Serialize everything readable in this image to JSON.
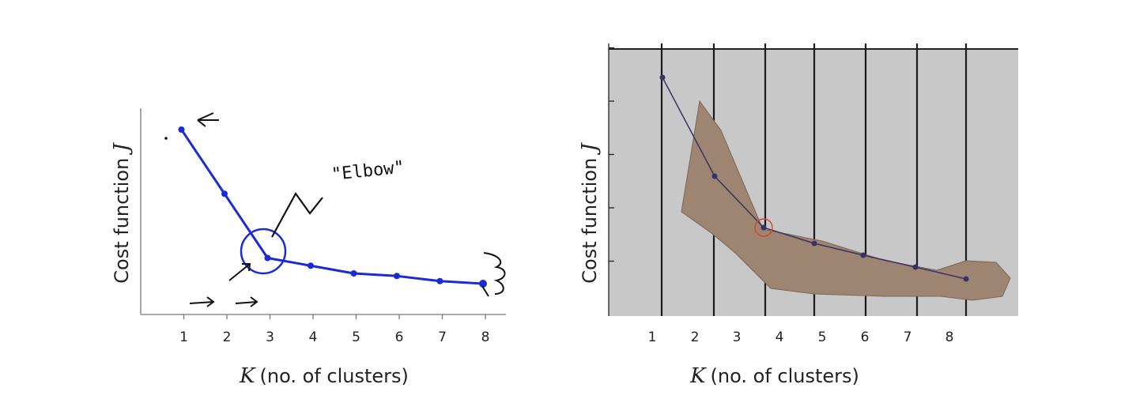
{
  "chart_data": [
    {
      "type": "line",
      "xlabel_symbol": "K",
      "xlabel": "(no. of clusters)",
      "ylabel": "Cost function",
      "ylabel_symbol": "J",
      "x": [
        1,
        2,
        3,
        4,
        5,
        6,
        7,
        8
      ],
      "series": [
        {
          "values": [
            7.2,
            4.7,
            2.2,
            1.9,
            1.6,
            1.5,
            1.3,
            1.2
          ]
        }
      ],
      "xlim": [
        0,
        8.5
      ],
      "ylim": [
        0,
        8
      ],
      "grid": false,
      "color": "#1a2bd6",
      "annotations": [
        {
          "text": "\"Elbow\"",
          "x": 3,
          "y": 2.2
        },
        {
          "text": "↝",
          "x": 1,
          "y": 7.2
        }
      ]
    },
    {
      "type": "line",
      "xlabel_symbol": "K",
      "xlabel": "(no. of clusters)",
      "ylabel": "Cost function",
      "ylabel_symbol": "J",
      "x": [
        1,
        2,
        3,
        4,
        5,
        6,
        7,
        8
      ],
      "series": [
        {
          "values": [
            6.0,
            3.5,
            2.2,
            1.8,
            1.5,
            1.2,
            0.9,
            0.8
          ]
        }
      ],
      "xlim": [
        0,
        8.5
      ],
      "ylim": [
        0,
        6
      ],
      "grid": true,
      "background": "#c8c8c8",
      "color": "#3a3266",
      "highlight_color": "#d04a2a"
    }
  ]
}
